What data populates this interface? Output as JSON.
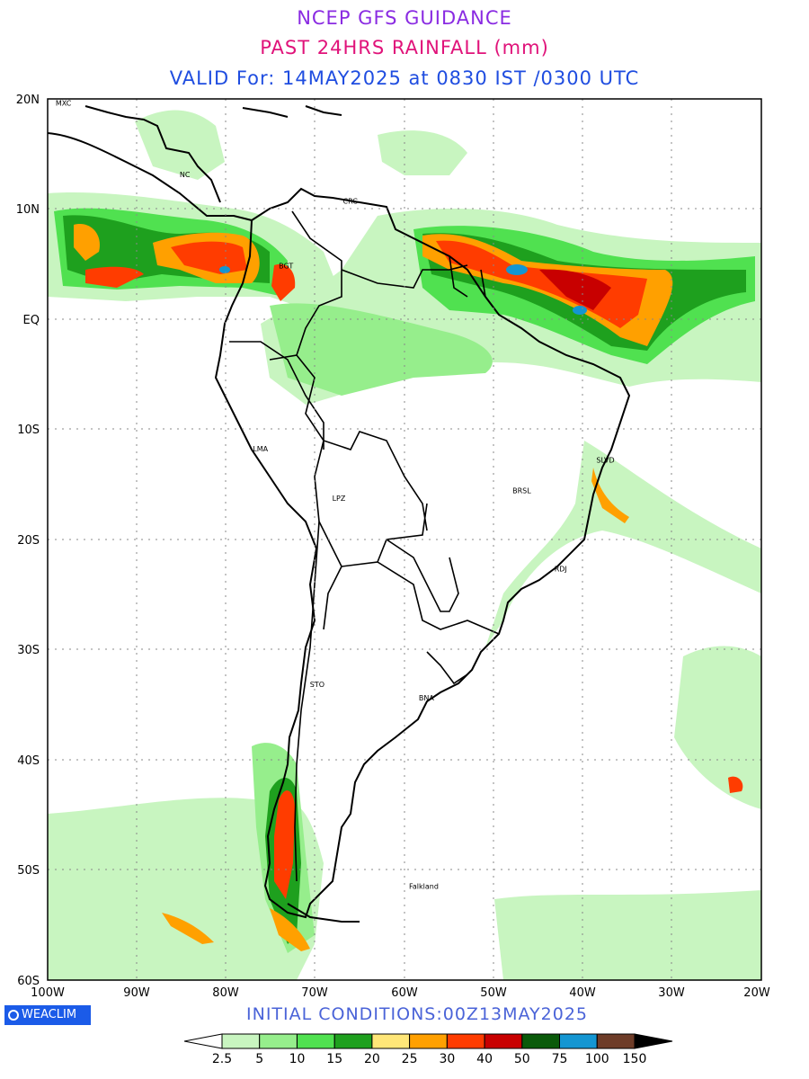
{
  "title": {
    "line1": "NCEP GFS GUIDANCE",
    "line2": "PAST 24HRS RAINFALL (mm)",
    "line3": "VALID For: 14MAY2025 at 0830 IST /0300 UTC"
  },
  "map": {
    "lon_range": [
      -100,
      -20
    ],
    "lat_range": [
      -60,
      20
    ],
    "lat_labels": [
      "20N",
      "10N",
      "EQ",
      "10S",
      "20S",
      "30S",
      "40S",
      "50S",
      "60S"
    ],
    "lon_labels": [
      "100W",
      "90W",
      "80W",
      "70W",
      "60W",
      "50W",
      "40W",
      "30W",
      "20W"
    ],
    "cities": [
      {
        "code": "MXC",
        "lon": -99.1,
        "lat": 19.4
      },
      {
        "code": "NC",
        "lon": -85.2,
        "lat": 12.9
      },
      {
        "code": "CRC",
        "lon": -66.9,
        "lat": 10.5
      },
      {
        "code": "BGT",
        "lon": -74.1,
        "lat": 4.6
      },
      {
        "code": "LMA",
        "lon": -77.0,
        "lat": -12.0
      },
      {
        "code": "LPZ",
        "lon": -68.1,
        "lat": -16.5
      },
      {
        "code": "BRSL",
        "lon": -47.9,
        "lat": -15.8
      },
      {
        "code": "SLVD",
        "lon": -38.5,
        "lat": -13.0
      },
      {
        "code": "RDJ",
        "lon": -43.2,
        "lat": -22.9
      },
      {
        "code": "STO",
        "lon": -70.6,
        "lat": -33.4
      },
      {
        "code": "BNA",
        "lon": -58.4,
        "lat": -34.6
      },
      {
        "code": "Falkland",
        "lon": -59.5,
        "lat": -51.7
      }
    ]
  },
  "initial_conditions": "INITIAL CONDITIONS:00Z13MAY2025",
  "logo": "WEACLIM",
  "legend": {
    "labels": [
      "2.5",
      "5",
      "10",
      "15",
      "20",
      "25",
      "30",
      "40",
      "50",
      "75",
      "100",
      "150"
    ],
    "colors": [
      "#ffffff",
      "#c8f5c0",
      "#96ee8c",
      "#50e150",
      "#1ea01e",
      "#ffe678",
      "#ffa000",
      "#ff3c00",
      "#c80000",
      "#0a5a0a",
      "#1496d2",
      "#6e3c28",
      "#000000"
    ]
  }
}
